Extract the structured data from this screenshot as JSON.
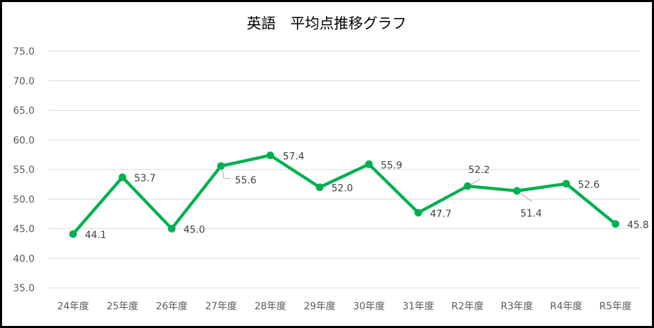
{
  "chart_data": {
    "type": "line",
    "title": "英語　平均点推移グラフ",
    "categories": [
      "24年度",
      "25年度",
      "26年度",
      "27年度",
      "28年度",
      "29年度",
      "30年度",
      "31年度",
      "R2年度",
      "R3年度",
      "R4年度",
      "R5年度"
    ],
    "series": [
      {
        "values": [
          44.1,
          53.7,
          45.0,
          55.6,
          57.4,
          52.0,
          55.9,
          47.7,
          52.2,
          51.4,
          52.6,
          45.8
        ],
        "labels": [
          "44.1",
          "53.7",
          "45.0",
          "55.6",
          "57.4",
          "52.0",
          "55.9",
          "47.7",
          "52.2",
          "51.4",
          "52.6",
          "45.8"
        ]
      }
    ],
    "ylim": [
      35,
      75
    ],
    "yticks": [
      "35.0",
      "40.0",
      "45.0",
      "50.0",
      "55.0",
      "60.0",
      "65.0",
      "70.0",
      "75.0"
    ],
    "xlabel": "",
    "ylabel": "",
    "grid": true,
    "legend": "none",
    "colors": {
      "line": "#00B050",
      "grid": "#D9D9D9",
      "leader": "#A6A6A6"
    }
  }
}
